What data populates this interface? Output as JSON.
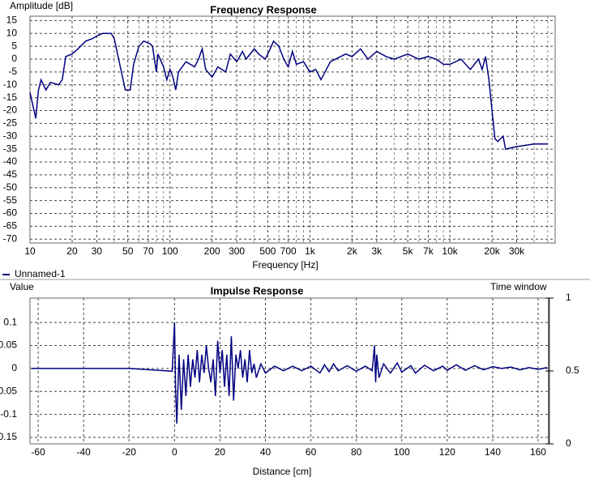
{
  "chart_data": [
    {
      "type": "line",
      "title": "Frequency Response",
      "ylabel": "Amplitude [dB]",
      "xlabel": "Frequency [Hz]",
      "xscale": "log",
      "grid": true,
      "xlim": [
        10,
        56500
      ],
      "ylim": [
        -71.5,
        16.7
      ],
      "xticks": [
        10,
        20,
        30,
        50,
        70,
        100,
        200,
        300,
        500,
        700,
        {
          "value": 1000,
          "label": "1k"
        },
        {
          "value": 2000,
          "label": "2k"
        },
        {
          "value": 3000,
          "label": "3k"
        },
        {
          "value": 5000,
          "label": "5k"
        },
        {
          "value": 7000,
          "label": "7k"
        },
        {
          "value": 10000,
          "label": "10k"
        },
        {
          "value": 20000,
          "label": "20k"
        },
        {
          "value": 30000,
          "label": "30k"
        }
      ],
      "xminor": [
        40,
        60,
        80,
        90,
        400,
        600,
        800,
        900,
        4000,
        6000,
        8000,
        9000,
        40000,
        50000
      ],
      "yticks": [
        15,
        10,
        5,
        0,
        -5,
        -10,
        -15,
        -20,
        -25,
        -30,
        -35,
        -40,
        -45,
        -50,
        -55,
        -60,
        -65,
        -70
      ],
      "legend": "bottom-left",
      "x": [
        10,
        11,
        11.5,
        12,
        13,
        14,
        16,
        17,
        18,
        20,
        22,
        25,
        28,
        30,
        33,
        38,
        40,
        45,
        48,
        52,
        55,
        60,
        65,
        72,
        75,
        80,
        82,
        90,
        95,
        100,
        105,
        110,
        115,
        130,
        150,
        160,
        170,
        180,
        200,
        220,
        250,
        270,
        300,
        330,
        350,
        400,
        430,
        480,
        520,
        550,
        600,
        650,
        700,
        750,
        800,
        900,
        1000,
        1100,
        1200,
        1400,
        1800,
        2000,
        2300,
        2600,
        3000,
        3500,
        4000,
        5000,
        6000,
        7000,
        8000,
        9000,
        10000,
        12000,
        14000,
        16000,
        17000,
        18000,
        19000,
        20000,
        21000,
        22000,
        24000,
        25000,
        30000,
        40000,
        50000
      ],
      "series": [
        {
          "name": "Unnamed-1",
          "color": "#000080",
          "values": [
            -13,
            -23,
            -12,
            -8,
            -12,
            -9,
            -10,
            -8,
            1,
            2,
            4,
            7,
            8,
            9,
            10,
            10,
            8,
            -5,
            -12,
            -12,
            -2,
            5,
            7,
            6,
            5,
            -5,
            2,
            -3,
            -8,
            -4,
            -7,
            -12,
            -5,
            -1,
            -3,
            0,
            4,
            -4,
            -7,
            -3,
            -5,
            2,
            -1,
            3,
            0,
            4,
            2,
            0,
            4,
            7,
            5,
            0,
            -3,
            3,
            -2,
            -1,
            -5,
            -4,
            -8,
            -1,
            2,
            1,
            4,
            0,
            3,
            1,
            0,
            2,
            0,
            1,
            0,
            -2,
            -2,
            0,
            -4,
            0,
            -4,
            1,
            -8,
            -20,
            -31,
            -32,
            -30,
            -35,
            -34,
            -33,
            -33
          ]
        }
      ]
    },
    {
      "type": "line",
      "title": "Impulse Response",
      "ylabel": "Value",
      "xlabel": "Distance [cm]",
      "y2label": "Time window",
      "grid": true,
      "color": "#000080",
      "xlim": [
        -63.6,
        165
      ],
      "ylim": [
        -0.164,
        0.153
      ],
      "y2lim": [
        -0.0,
        1.0
      ],
      "xticks": [
        -60,
        -40,
        -20,
        0,
        20,
        40,
        60,
        80,
        100,
        120,
        140,
        160
      ],
      "yticks": [
        0.1,
        0.05,
        0,
        -0.05,
        -0.1,
        -0.15
      ],
      "y2ticks": [
        1,
        0.5,
        0
      ],
      "x": [
        -63,
        -20,
        -10,
        -1,
        0,
        0.5,
        1,
        2,
        3,
        4,
        5,
        6,
        7,
        8,
        9,
        10,
        11,
        12,
        13,
        14,
        15,
        16,
        17,
        18,
        19,
        20,
        21,
        22,
        23,
        24,
        25,
        26,
        27,
        28,
        29,
        30,
        31,
        32,
        33,
        34,
        35,
        36,
        38,
        40,
        44,
        48,
        52,
        56,
        60,
        64,
        66,
        68,
        70,
        72,
        76,
        80,
        84,
        87,
        88,
        88.5,
        89,
        90,
        92,
        95,
        98,
        100,
        104,
        106,
        110,
        114,
        118,
        120,
        124,
        128,
        132,
        136,
        140,
        144,
        148,
        152,
        156,
        160,
        164
      ],
      "values": [
        0,
        0,
        -0.003,
        -0.006,
        0.1,
        -0.05,
        -0.12,
        0.03,
        -0.09,
        0.02,
        -0.06,
        0.03,
        -0.04,
        0.02,
        -0.02,
        0.04,
        -0.03,
        0.03,
        -0.01,
        0.05,
        0.0,
        -0.03,
        0.02,
        -0.06,
        0.06,
        -0.01,
        0.04,
        -0.04,
        0.03,
        -0.06,
        0.07,
        -0.07,
        0.03,
        0.0,
        0.04,
        -0.02,
        0.02,
        -0.03,
        0.04,
        -0.01,
        0.01,
        -0.02,
        0.01,
        -0.01,
        0.005,
        -0.005,
        0.005,
        -0.005,
        0.005,
        -0.01,
        0.008,
        -0.007,
        0.01,
        -0.005,
        0.006,
        -0.006,
        0.005,
        -0.005,
        0.05,
        -0.03,
        0.03,
        -0.02,
        0.01,
        -0.01,
        0.012,
        -0.008,
        0.006,
        -0.01,
        0.007,
        -0.005,
        0.005,
        -0.004,
        0.008,
        -0.004,
        0.006,
        -0.003,
        0.004,
        0.0,
        0.003,
        -0.003,
        0.002,
        -0.002,
        0.002
      ]
    }
  ]
}
